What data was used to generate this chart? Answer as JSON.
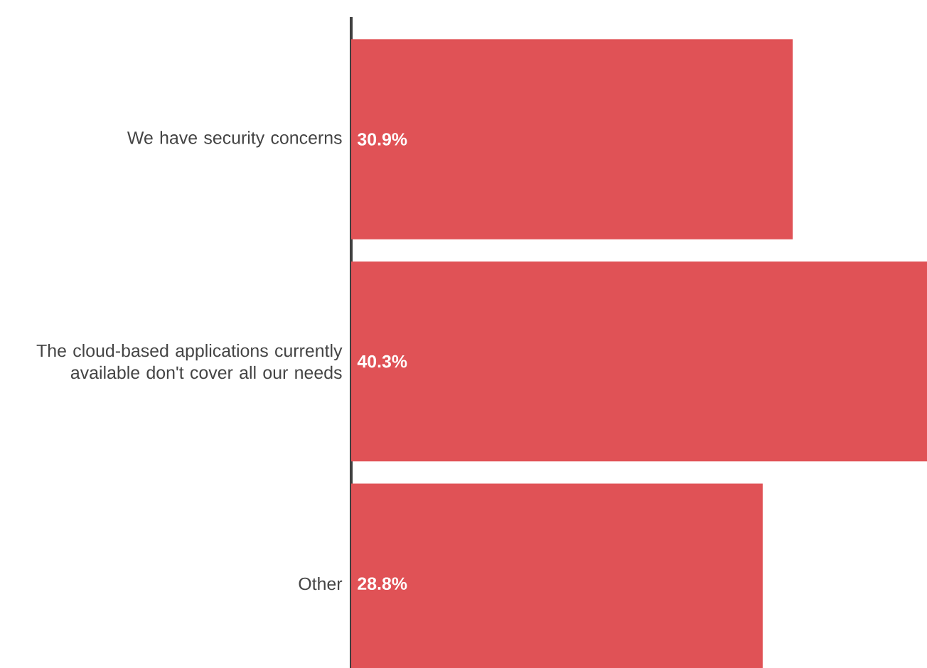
{
  "chart_data": {
    "type": "bar",
    "orientation": "horizontal",
    "categories": [
      "We have security concerns",
      "The cloud-based applications currently available don't cover all our needs",
      "Other"
    ],
    "values": [
      30.9,
      40.3,
      28.8
    ],
    "value_labels": [
      "30.9%",
      "40.3%",
      "28.8%"
    ],
    "color": "#e05256"
  }
}
